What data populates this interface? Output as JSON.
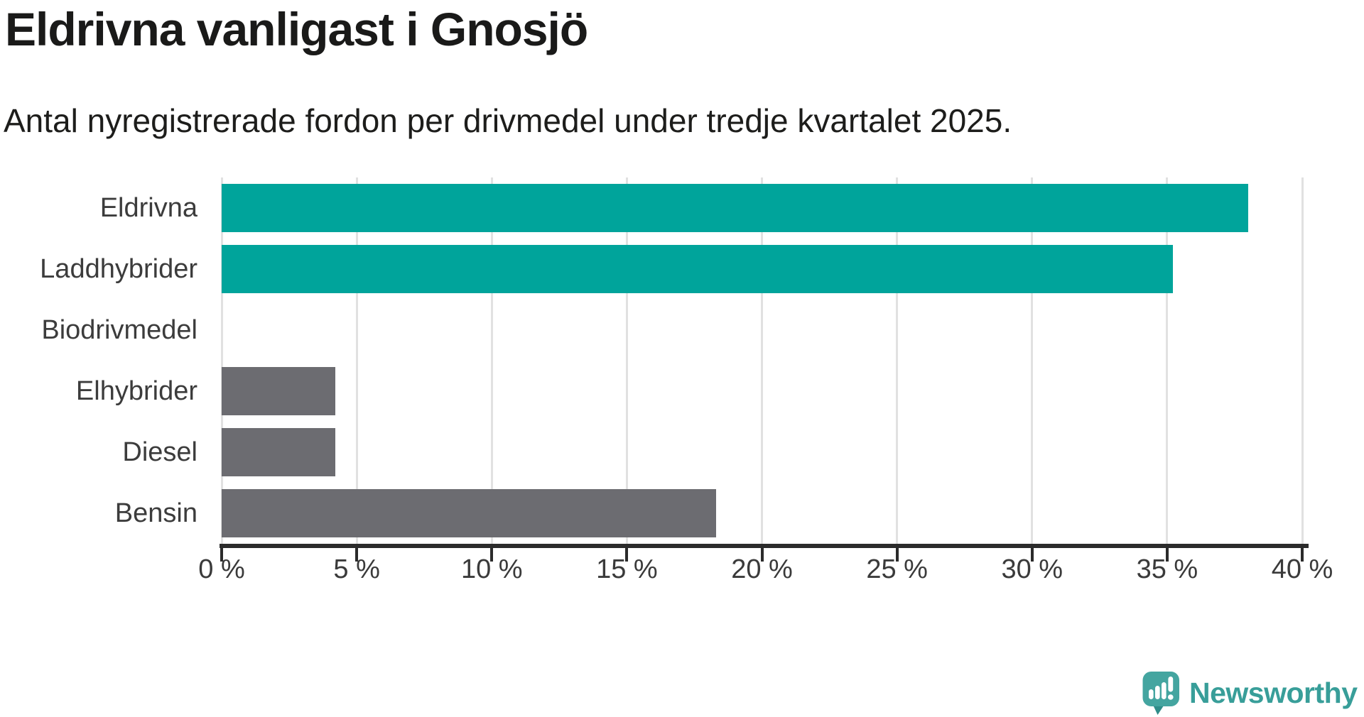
{
  "header": {
    "title": "Eldrivna vanligast i Gnosjö",
    "subtitle": "Antal nyregistrerade fordon per drivmedel under tredje kvartalet 2025."
  },
  "chart_data": {
    "type": "bar",
    "orientation": "horizontal",
    "title": "Eldrivna vanligast i Gnosjö",
    "subtitle": "Antal nyregistrerade fordon per drivmedel under tredje kvartalet 2025.",
    "categories": [
      "Eldrivna",
      "Laddhybrider",
      "Biodrivmedel",
      "Elhybrider",
      "Diesel",
      "Bensin"
    ],
    "values": [
      38.0,
      35.2,
      0,
      4.2,
      4.2,
      18.3
    ],
    "unit": "%",
    "bar_colors": [
      "#00a49b",
      "#00a49b",
      "#6c6c71",
      "#6c6c71",
      "#6c6c71",
      "#6c6c71"
    ],
    "xlabel": "",
    "ylabel": "",
    "xlim": [
      0,
      40
    ],
    "xticks": [
      0,
      5,
      10,
      15,
      20,
      25,
      30,
      35,
      40
    ],
    "xtick_suffix": " %",
    "grid": true,
    "legend": false
  },
  "colors": {
    "highlight_bar": "#00a49b",
    "default_bar": "#6c6c71",
    "gridline": "#e1e1e1",
    "axis": "#2b2b2b",
    "title_text": "#1a1a19",
    "label_text": "#3c3c3c",
    "brand_teal": "#389e99"
  },
  "branding": {
    "wordmark": "Newsworthy",
    "logo_icon": "speech-bubble-with-bar-chart-and-exclamation"
  }
}
